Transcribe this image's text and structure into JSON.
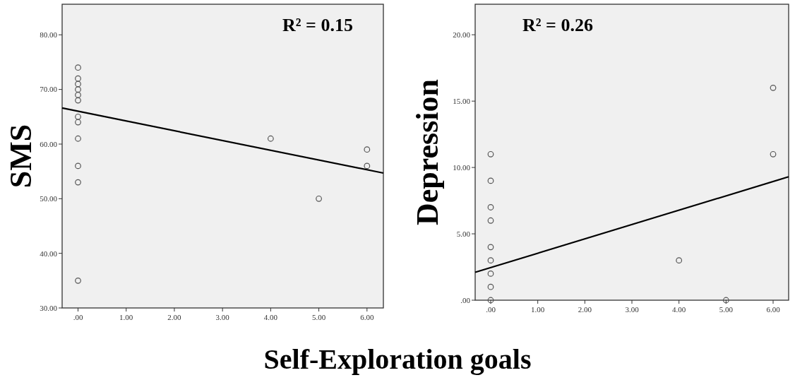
{
  "chart_data": [
    {
      "type": "scatter",
      "ylabel": "SMS",
      "xlabel": "Self-Exploration goals",
      "annotations": [
        "R² = 0.15"
      ],
      "xlim": [
        -0.33,
        6.34
      ],
      "ylim": [
        30,
        85.6
      ],
      "xticks": [
        {
          "value": 0,
          "label": ".00"
        },
        {
          "value": 1,
          "label": "1.00"
        },
        {
          "value": 2,
          "label": "2.00"
        },
        {
          "value": 3,
          "label": "3.00"
        },
        {
          "value": 4,
          "label": "4.00"
        },
        {
          "value": 5,
          "label": "5.00"
        },
        {
          "value": 6,
          "label": "6.00"
        }
      ],
      "yticks": [
        {
          "value": 30,
          "label": "30.00"
        },
        {
          "value": 40,
          "label": "40.00"
        },
        {
          "value": 50,
          "label": "50.00"
        },
        {
          "value": 60,
          "label": "60.00"
        },
        {
          "value": 70,
          "label": "70.00"
        },
        {
          "value": 80,
          "label": "80.00"
        }
      ],
      "grid": false,
      "series": [
        {
          "color": "#555555",
          "marker": "circle",
          "x": [
            0,
            0,
            0,
            0,
            0,
            0,
            0,
            0,
            0,
            0,
            0,
            0,
            4,
            5,
            6,
            6
          ],
          "values": [
            74,
            72,
            71,
            70,
            69,
            68,
            65,
            64,
            61,
            56,
            53,
            35,
            61,
            50,
            59,
            56
          ]
        },
        {
          "type": "line",
          "color": "#000000",
          "x": [
            -0.33,
            6.34
          ],
          "values": [
            66.6,
            54.7
          ]
        }
      ]
    },
    {
      "type": "scatter",
      "ylabel": "Depression",
      "annotations": [
        "R² = 0.26"
      ],
      "xlim": [
        -0.33,
        6.33
      ],
      "ylim": [
        0,
        22.3
      ],
      "xticks": [
        {
          "value": 0,
          "label": ".00"
        },
        {
          "value": 1,
          "label": "1.00"
        },
        {
          "value": 2,
          "label": "2.00"
        },
        {
          "value": 3,
          "label": "3.00"
        },
        {
          "value": 4,
          "label": "4.00"
        },
        {
          "value": 5,
          "label": "5.00"
        },
        {
          "value": 6,
          "label": "6.00"
        }
      ],
      "yticks": [
        {
          "value": 0,
          "label": ".00"
        },
        {
          "value": 5,
          "label": "5.00"
        },
        {
          "value": 10,
          "label": "10.00"
        },
        {
          "value": 15,
          "label": "15.00"
        },
        {
          "value": 20,
          "label": "20.00"
        }
      ],
      "grid": false,
      "series": [
        {
          "color": "#555555",
          "marker": "circle",
          "x": [
            0,
            0,
            0,
            0,
            0,
            0,
            0,
            0,
            0,
            4,
            5,
            6,
            6
          ],
          "values": [
            11,
            9,
            7,
            6,
            4,
            3,
            2,
            1,
            0,
            3,
            0,
            16,
            11
          ]
        },
        {
          "type": "line",
          "color": "#000000",
          "x": [
            -0.33,
            6.33
          ],
          "values": [
            2.1,
            9.3
          ]
        }
      ]
    }
  ]
}
